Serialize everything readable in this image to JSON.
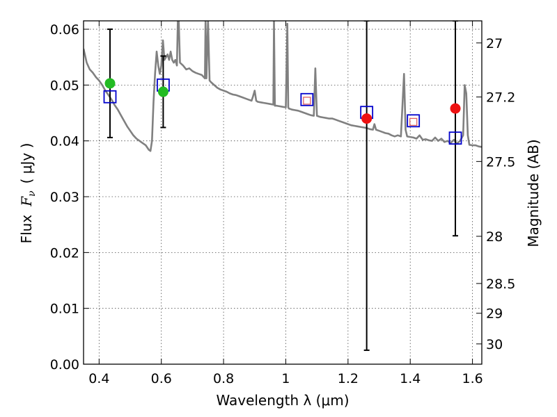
{
  "chart_data": {
    "type": "scatter",
    "title": "",
    "xlabel": "Wavelength  λ (μm)",
    "ylabel_left_prefix": "Flux",
    "ylabel_left_symbol": "F",
    "ylabel_left_subscript": "ν",
    "ylabel_left_units": "( μJy )",
    "ylabel_right": "Magnitude (AB)",
    "xlim": [
      0.35,
      1.63
    ],
    "ylim": [
      0.0,
      0.0615
    ],
    "grid": true,
    "legend": "none",
    "x_ticks": [
      0.4,
      0.6,
      0.8,
      1.0,
      1.2,
      1.4,
      1.6
    ],
    "x_tick_labels": [
      "0.4",
      "0.6",
      "0.8",
      "1",
      "1.2",
      "1.4",
      "1.6"
    ],
    "y_ticks": [
      0.0,
      0.01,
      0.02,
      0.03,
      0.04,
      0.05,
      0.06
    ],
    "y_tick_labels": [
      "0.00",
      "0.01",
      "0.02",
      "0.03",
      "0.04",
      "0.05",
      "0.06"
    ],
    "right_ticks": [
      {
        "mag": 27,
        "label": "27"
      },
      {
        "mag": 27.2,
        "label": "27.2"
      },
      {
        "mag": 27.5,
        "label": "27.5"
      },
      {
        "mag": 28,
        "label": "28"
      },
      {
        "mag": 28.5,
        "label": "28.5"
      },
      {
        "mag": 29,
        "label": "29"
      },
      {
        "mag": 30,
        "label": "30"
      }
    ],
    "series": [
      {
        "kind": "model_spectrum",
        "color": "#808080",
        "points": [
          [
            0.35,
            0.0565
          ],
          [
            0.36,
            0.054
          ],
          [
            0.37,
            0.0528
          ],
          [
            0.38,
            0.0522
          ],
          [
            0.39,
            0.0514
          ],
          [
            0.4,
            0.0508
          ],
          [
            0.41,
            0.05
          ],
          [
            0.42,
            0.049
          ],
          [
            0.43,
            0.0482
          ],
          [
            0.44,
            0.0474
          ],
          [
            0.45,
            0.0464
          ],
          [
            0.46,
            0.0456
          ],
          [
            0.47,
            0.0446
          ],
          [
            0.48,
            0.0436
          ],
          [
            0.49,
            0.0426
          ],
          [
            0.5,
            0.0418
          ],
          [
            0.51,
            0.041
          ],
          [
            0.52,
            0.0404
          ],
          [
            0.53,
            0.04
          ],
          [
            0.54,
            0.0396
          ],
          [
            0.55,
            0.0392
          ],
          [
            0.56,
            0.0384
          ],
          [
            0.565,
            0.0382
          ],
          [
            0.57,
            0.04
          ],
          [
            0.575,
            0.047
          ],
          [
            0.58,
            0.0522
          ],
          [
            0.585,
            0.056
          ],
          [
            0.59,
            0.0535
          ],
          [
            0.595,
            0.052
          ],
          [
            0.6,
            0.0535
          ],
          [
            0.605,
            0.058
          ],
          [
            0.61,
            0.0545
          ],
          [
            0.62,
            0.0555
          ],
          [
            0.625,
            0.0545
          ],
          [
            0.63,
            0.056
          ],
          [
            0.635,
            0.0545
          ],
          [
            0.64,
            0.054
          ],
          [
            0.645,
            0.0545
          ],
          [
            0.65,
            0.0535
          ],
          [
            0.653,
            0.0615
          ],
          [
            0.656,
            0.0615
          ],
          [
            0.66,
            0.054
          ],
          [
            0.67,
            0.0535
          ],
          [
            0.68,
            0.0528
          ],
          [
            0.69,
            0.053
          ],
          [
            0.7,
            0.0525
          ],
          [
            0.71,
            0.0522
          ],
          [
            0.72,
            0.052
          ],
          [
            0.73,
            0.0518
          ],
          [
            0.74,
            0.0512
          ],
          [
            0.742,
            0.0615
          ],
          [
            0.745,
            0.0512
          ],
          [
            0.75,
            0.0615
          ],
          [
            0.755,
            0.0508
          ],
          [
            0.76,
            0.0505
          ],
          [
            0.77,
            0.05
          ],
          [
            0.78,
            0.0495
          ],
          [
            0.79,
            0.0492
          ],
          [
            0.8,
            0.049
          ],
          [
            0.81,
            0.0488
          ],
          [
            0.82,
            0.0485
          ],
          [
            0.83,
            0.0483
          ],
          [
            0.84,
            0.0482
          ],
          [
            0.85,
            0.048
          ],
          [
            0.86,
            0.0478
          ],
          [
            0.87,
            0.0476
          ],
          [
            0.88,
            0.0474
          ],
          [
            0.89,
            0.0472
          ],
          [
            0.895,
            0.048
          ],
          [
            0.9,
            0.049
          ],
          [
            0.905,
            0.0472
          ],
          [
            0.91,
            0.047
          ],
          [
            0.92,
            0.0469
          ],
          [
            0.93,
            0.0468
          ],
          [
            0.94,
            0.0467
          ],
          [
            0.95,
            0.0466
          ],
          [
            0.96,
            0.0465
          ],
          [
            0.962,
            0.0615
          ],
          [
            0.965,
            0.0463
          ],
          [
            0.97,
            0.0463
          ],
          [
            0.98,
            0.0462
          ],
          [
            0.99,
            0.0461
          ],
          [
            1.0,
            0.046
          ],
          [
            1.005,
            0.061
          ],
          [
            1.008,
            0.046
          ],
          [
            1.01,
            0.0458
          ],
          [
            1.02,
            0.0456
          ],
          [
            1.03,
            0.0455
          ],
          [
            1.04,
            0.0454
          ],
          [
            1.05,
            0.0452
          ],
          [
            1.06,
            0.045
          ],
          [
            1.07,
            0.0448
          ],
          [
            1.08,
            0.0446
          ],
          [
            1.09,
            0.0445
          ],
          [
            1.095,
            0.053
          ],
          [
            1.1,
            0.0445
          ],
          [
            1.11,
            0.0443
          ],
          [
            1.12,
            0.0442
          ],
          [
            1.13,
            0.0441
          ],
          [
            1.14,
            0.044
          ],
          [
            1.15,
            0.044
          ],
          [
            1.16,
            0.0438
          ],
          [
            1.17,
            0.0436
          ],
          [
            1.18,
            0.0434
          ],
          [
            1.19,
            0.0432
          ],
          [
            1.2,
            0.043
          ],
          [
            1.21,
            0.0428
          ],
          [
            1.22,
            0.0427
          ],
          [
            1.23,
            0.0426
          ],
          [
            1.24,
            0.0425
          ],
          [
            1.25,
            0.0424
          ],
          [
            1.26,
            0.0423
          ],
          [
            1.27,
            0.0421
          ],
          [
            1.28,
            0.042
          ],
          [
            1.285,
            0.043
          ],
          [
            1.29,
            0.042
          ],
          [
            1.3,
            0.0418
          ],
          [
            1.31,
            0.0416
          ],
          [
            1.32,
            0.0414
          ],
          [
            1.33,
            0.0413
          ],
          [
            1.34,
            0.041
          ],
          [
            1.35,
            0.0408
          ],
          [
            1.36,
            0.041
          ],
          [
            1.37,
            0.0408
          ],
          [
            1.38,
            0.052
          ],
          [
            1.385,
            0.042
          ],
          [
            1.39,
            0.0408
          ],
          [
            1.4,
            0.0407
          ],
          [
            1.41,
            0.0406
          ],
          [
            1.42,
            0.0404
          ],
          [
            1.43,
            0.041
          ],
          [
            1.44,
            0.0402
          ],
          [
            1.45,
            0.0403
          ],
          [
            1.46,
            0.0401
          ],
          [
            1.47,
            0.04
          ],
          [
            1.48,
            0.0406
          ],
          [
            1.49,
            0.04
          ],
          [
            1.5,
            0.0404
          ],
          [
            1.51,
            0.0398
          ],
          [
            1.52,
            0.04
          ],
          [
            1.53,
            0.0396
          ],
          [
            1.54,
            0.0402
          ],
          [
            1.55,
            0.0395
          ],
          [
            1.56,
            0.04
          ],
          [
            1.57,
            0.041
          ],
          [
            1.575,
            0.05
          ],
          [
            1.58,
            0.0485
          ],
          [
            1.585,
            0.041
          ],
          [
            1.59,
            0.0393
          ],
          [
            1.6,
            0.0392
          ],
          [
            1.61,
            0.0392
          ],
          [
            1.62,
            0.039
          ],
          [
            1.63,
            0.0389
          ]
        ]
      },
      {
        "kind": "errorbars",
        "color": "#000000",
        "items": [
          {
            "x": 0.435,
            "y": 0.0503,
            "low": 0.0406,
            "high": 0.06
          },
          {
            "x": 0.606,
            "y": 0.0488,
            "low": 0.0424,
            "high": 0.0552
          },
          {
            "x": 1.26,
            "y": 0.044,
            "low": 0.0025,
            "high": 0.0615
          },
          {
            "x": 1.545,
            "y": 0.0458,
            "low": 0.023,
            "high": 0.0615
          }
        ]
      },
      {
        "kind": "observed_points_green",
        "color": "#22bb22",
        "points": [
          [
            0.435,
            0.0503
          ],
          [
            0.606,
            0.0488
          ]
        ]
      },
      {
        "kind": "observed_points_red",
        "color": "#ee1111",
        "points": [
          [
            1.26,
            0.044
          ],
          [
            1.545,
            0.0458
          ]
        ]
      },
      {
        "kind": "model_photometry_large_squares",
        "color": "#0000cc",
        "points": [
          [
            0.435,
            0.0479
          ],
          [
            0.606,
            0.05
          ],
          [
            1.068,
            0.0474
          ],
          [
            1.26,
            0.0451
          ],
          [
            1.41,
            0.0436
          ],
          [
            1.545,
            0.0405
          ]
        ]
      },
      {
        "kind": "model_photometry_small_squares",
        "color": "#e06060",
        "points": [
          [
            1.068,
            0.0472
          ],
          [
            1.41,
            0.0434
          ]
        ]
      }
    ]
  }
}
